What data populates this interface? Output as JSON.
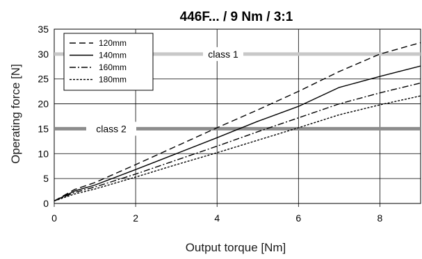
{
  "chart_data": {
    "type": "line",
    "title": "446F... / 9 Nm / 3:1",
    "xlabel": "Output torque [Nm]",
    "ylabel": "Operating force [N]",
    "xlim": [
      0,
      9
    ],
    "ylim": [
      0,
      35
    ],
    "xticks": [
      0,
      2,
      4,
      6,
      8
    ],
    "yticks": [
      0,
      5,
      10,
      15,
      20,
      25,
      30,
      35
    ],
    "grid": true,
    "legend_position": "top-left",
    "bands": [
      {
        "label": "class 1",
        "y": 30,
        "color": "#c8c8c8"
      },
      {
        "label": "class 2",
        "y": 15,
        "color": "#8c8c8c"
      }
    ],
    "series": [
      {
        "name": "120mm",
        "dash": "9,5",
        "x": [
          0,
          0.5,
          1,
          2,
          3,
          4,
          5,
          6,
          7,
          8,
          9
        ],
        "y": [
          0.5,
          2.8,
          4.2,
          7.8,
          11.5,
          15.2,
          18.8,
          22.5,
          26.5,
          30,
          32.3
        ]
      },
      {
        "name": "140mm",
        "dash": "",
        "x": [
          0,
          0.5,
          1,
          2,
          3,
          4,
          5,
          6,
          7,
          8,
          9
        ],
        "y": [
          0.5,
          2.5,
          3.7,
          6.8,
          10.0,
          13.2,
          16.5,
          19.5,
          23.3,
          25.5,
          27.6
        ]
      },
      {
        "name": "160mm",
        "dash": "9,3,2,3",
        "x": [
          0,
          0.5,
          1,
          2,
          3,
          4,
          5,
          6,
          7,
          8,
          9
        ],
        "y": [
          0.5,
          2.2,
          3.3,
          5.9,
          8.7,
          11.5,
          14.4,
          17.2,
          20.0,
          22.2,
          24.2
        ]
      },
      {
        "name": "180mm",
        "dash": "3,2",
        "x": [
          0,
          0.5,
          1,
          2,
          3,
          4,
          5,
          6,
          7,
          8,
          9
        ],
        "y": [
          0.5,
          1.9,
          2.9,
          5.3,
          7.8,
          10.2,
          12.7,
          15.2,
          17.8,
          19.8,
          21.6
        ]
      }
    ]
  }
}
